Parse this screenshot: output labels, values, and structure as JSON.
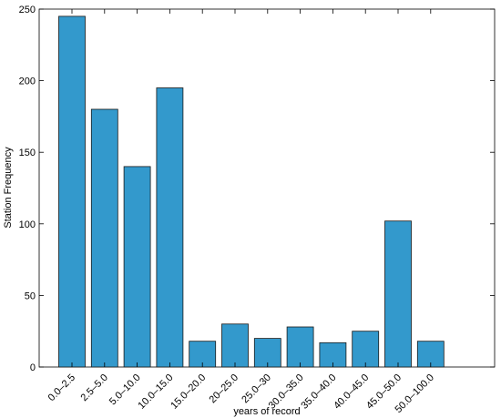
{
  "chart_data": {
    "type": "bar",
    "categories": [
      "0.0–2.5",
      "2.5–5.0",
      "5.0–10.0",
      "10.0–15.0",
      "15.0–20.0",
      "20–25.0",
      "25.0–30",
      "30.0–35.0",
      "35.0–40.0",
      "40.0–45.0",
      "45.0–50.0",
      "50.0–100.0"
    ],
    "values": [
      245,
      180,
      140,
      195,
      18,
      30,
      20,
      28,
      17,
      25,
      102,
      18
    ],
    "xlabel": "years of record",
    "ylabel": "Station Frequency",
    "ylim": [
      0,
      250
    ],
    "yticks": [
      0,
      50,
      100,
      150,
      200,
      250
    ],
    "grid": false,
    "legend": "none",
    "bar_color": "#3399cc",
    "bar_edge_color": "#1a1a1a"
  }
}
